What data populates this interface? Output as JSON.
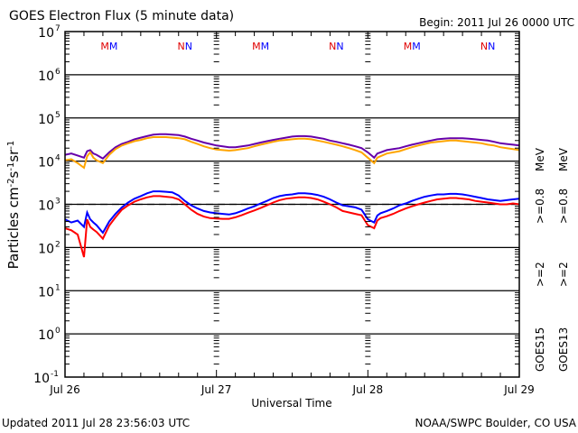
{
  "chart_data": {
    "type": "line",
    "title": "GOES Electron Flux (5 minute data)",
    "begin_label": "Begin: 2011 Jul 26 0000 UTC",
    "xlabel": "Universal Time",
    "ylabel_parts": {
      "base": "Particles cm",
      "exp1": "-2",
      "mid1": "s",
      "exp2": "-1",
      "mid2": "sr",
      "exp3": "-1"
    },
    "y_scale": "log",
    "ylim": [
      0.1,
      10000000
    ],
    "y_ticks": [
      {
        "base": "10",
        "exp": "7",
        "value": 10000000
      },
      {
        "base": "10",
        "exp": "6",
        "value": 1000000
      },
      {
        "base": "10",
        "exp": "5",
        "value": 100000
      },
      {
        "base": "10",
        "exp": "4",
        "value": 10000
      },
      {
        "base": "10",
        "exp": "3",
        "value": 1000
      },
      {
        "base": "10",
        "exp": "2",
        "value": 100
      },
      {
        "base": "10",
        "exp": "1",
        "value": 10
      },
      {
        "base": "10",
        "exp": "0",
        "value": 1
      },
      {
        "base": "10",
        "exp": "-1",
        "value": 0.1
      }
    ],
    "x_unit": "hours since 2011 Jul 26 00:00 UTC",
    "xlim": [
      0,
      72
    ],
    "x_ticks": [
      {
        "label": "Jul 26",
        "hour": 0
      },
      {
        "label": "Jul 27",
        "hour": 24
      },
      {
        "label": "Jul 28",
        "hour": 48
      },
      {
        "label": "Jul 29",
        "hour": 72
      }
    ],
    "threshold_line": {
      "value": 1000,
      "style": "dashed"
    },
    "markers": [
      {
        "label": "M",
        "hour": 7,
        "colors": [
          "#e00000",
          "#0000ff"
        ]
      },
      {
        "label": "N",
        "hour": 19,
        "colors": [
          "#e00000",
          "#0000ff"
        ]
      },
      {
        "label": "M",
        "hour": 31,
        "colors": [
          "#e00000",
          "#0000ff"
        ]
      },
      {
        "label": "N",
        "hour": 43,
        "colors": [
          "#e00000",
          "#0000ff"
        ]
      },
      {
        "label": "M",
        "hour": 55,
        "colors": [
          "#e00000",
          "#0000ff"
        ]
      },
      {
        "label": "N",
        "hour": 67,
        "colors": [
          "#e00000",
          "#0000ff"
        ]
      }
    ],
    "legend": {
      "placement": "right",
      "columns": [
        {
          "satellite": "GOES15",
          "entries": [
            {
              "label": ">=2",
              "color": "#0000ff"
            },
            {
              "label": ">=0.8",
              "color": "#6600aa"
            },
            {
              "unit": "MeV"
            }
          ]
        },
        {
          "satellite": "GOES13",
          "entries": [
            {
              "label": ">=2",
              "color": "#ff0000"
            },
            {
              "label": ">=0.8",
              "color": "#ffa500"
            },
            {
              "unit": "MeV"
            }
          ]
        }
      ],
      "unit": "MeV"
    },
    "series": [
      {
        "name": "GOES15 >=0.8 MeV",
        "color": "#6600aa",
        "x": [
          0,
          1,
          2,
          3,
          3.5,
          4,
          4.5,
          5,
          6,
          7,
          8,
          9,
          10,
          11,
          12,
          13,
          14,
          15,
          16,
          17,
          18,
          19,
          20,
          21,
          22,
          23,
          24,
          25,
          26,
          27,
          28,
          29,
          30,
          31,
          32,
          33,
          34,
          35,
          36,
          37,
          38,
          39,
          40,
          41,
          42,
          43,
          44,
          45,
          46,
          47,
          48,
          49,
          49.5,
          50,
          51,
          52,
          53,
          54,
          55,
          56,
          57,
          58,
          59,
          60,
          61,
          62,
          63,
          64,
          65,
          66,
          67,
          68,
          69,
          70,
          71,
          72
        ],
        "y": [
          14000,
          15000,
          13500,
          12000,
          17000,
          18000,
          15000,
          14000,
          11500,
          16000,
          21000,
          25000,
          28000,
          32000,
          35000,
          38000,
          41000,
          42000,
          42000,
          41000,
          40000,
          37000,
          33000,
          30000,
          27000,
          25000,
          23000,
          22000,
          21000,
          21000,
          22000,
          23000,
          25000,
          27000,
          29000,
          31000,
          33000,
          35000,
          37000,
          38000,
          38000,
          37000,
          35000,
          33000,
          30000,
          28000,
          26000,
          24000,
          22000,
          20000,
          16000,
          12000,
          15000,
          16000,
          18000,
          19000,
          20000,
          22000,
          24000,
          26000,
          28000,
          30000,
          32000,
          33000,
          34000,
          34000,
          34000,
          33000,
          32000,
          31000,
          30000,
          28000,
          26000,
          25000,
          24000,
          23000
        ]
      },
      {
        "name": "GOES13 >=0.8 MeV",
        "color": "#ffa500",
        "x": [
          0,
          1,
          2,
          3,
          3.5,
          4,
          4.5,
          5,
          6,
          7,
          8,
          9,
          10,
          11,
          12,
          13,
          14,
          15,
          16,
          17,
          18,
          19,
          20,
          21,
          22,
          23,
          24,
          25,
          26,
          27,
          28,
          29,
          30,
          31,
          32,
          33,
          34,
          35,
          36,
          37,
          38,
          39,
          40,
          41,
          42,
          43,
          44,
          45,
          46,
          47,
          48,
          49,
          49.5,
          50,
          51,
          52,
          53,
          54,
          55,
          56,
          57,
          58,
          59,
          60,
          61,
          62,
          63,
          64,
          65,
          66,
          67,
          68,
          69,
          70,
          71,
          72
        ],
        "y": [
          10500,
          11000,
          9000,
          7000,
          13000,
          16000,
          12000,
          10500,
          9000,
          14000,
          19000,
          23000,
          26000,
          29000,
          31000,
          34000,
          36000,
          36000,
          36000,
          35000,
          34000,
          32000,
          28000,
          25000,
          22000,
          20000,
          18500,
          18000,
          17500,
          18000,
          19000,
          20000,
          22000,
          24000,
          26000,
          28000,
          30000,
          31000,
          32000,
          33000,
          33000,
          32000,
          30000,
          28000,
          26000,
          24000,
          22000,
          20000,
          18000,
          16000,
          12000,
          9000,
          12000,
          13000,
          15000,
          16000,
          17000,
          19000,
          21000,
          23000,
          25000,
          27000,
          28000,
          29000,
          30000,
          30000,
          29000,
          28000,
          27000,
          26000,
          24000,
          23000,
          21000,
          20000,
          19000,
          18000
        ]
      },
      {
        "name": "GOES15 >=2 MeV",
        "color": "#0000ff",
        "x": [
          0,
          1,
          2,
          3,
          3.5,
          4,
          4.5,
          5,
          6,
          7,
          8,
          9,
          10,
          11,
          12,
          13,
          14,
          15,
          16,
          17,
          18,
          19,
          20,
          21,
          22,
          23,
          24,
          25,
          26,
          27,
          28,
          29,
          30,
          31,
          32,
          33,
          34,
          35,
          36,
          37,
          38,
          39,
          40,
          41,
          42,
          43,
          44,
          45,
          46,
          47,
          48,
          49,
          49.5,
          50,
          51,
          52,
          53,
          54,
          55,
          56,
          57,
          58,
          59,
          60,
          61,
          62,
          63,
          64,
          65,
          66,
          67,
          68,
          69,
          70,
          71,
          72
        ],
        "y": [
          450,
          380,
          420,
          300,
          650,
          450,
          380,
          330,
          220,
          400,
          600,
          850,
          1100,
          1350,
          1550,
          1800,
          2000,
          2000,
          1950,
          1900,
          1600,
          1200,
          950,
          800,
          700,
          650,
          620,
          600,
          580,
          620,
          700,
          800,
          900,
          1050,
          1200,
          1400,
          1550,
          1650,
          1700,
          1800,
          1800,
          1750,
          1650,
          1500,
          1300,
          1100,
          950,
          900,
          850,
          750,
          450,
          380,
          550,
          620,
          700,
          800,
          950,
          1050,
          1200,
          1350,
          1500,
          1600,
          1700,
          1700,
          1750,
          1750,
          1700,
          1600,
          1500,
          1400,
          1300,
          1250,
          1200,
          1250,
          1300,
          1350
        ]
      },
      {
        "name": "GOES13 >=2 MeV",
        "color": "#ff0000",
        "x": [
          0,
          1,
          2,
          3,
          3.5,
          4,
          4.5,
          5,
          6,
          7,
          8,
          9,
          10,
          11,
          12,
          13,
          14,
          15,
          16,
          17,
          18,
          19,
          20,
          21,
          22,
          23,
          24,
          25,
          26,
          27,
          28,
          29,
          30,
          31,
          32,
          33,
          34,
          35,
          36,
          37,
          38,
          39,
          40,
          41,
          42,
          43,
          44,
          45,
          46,
          47,
          48,
          49,
          49.5,
          50,
          51,
          52,
          53,
          54,
          55,
          56,
          57,
          58,
          59,
          60,
          61,
          62,
          63,
          64,
          65,
          66,
          67,
          68,
          69,
          70,
          71,
          72
        ],
        "y": [
          280,
          250,
          200,
          60,
          450,
          300,
          260,
          230,
          160,
          320,
          500,
          750,
          950,
          1150,
          1300,
          1450,
          1550,
          1550,
          1500,
          1450,
          1300,
          1000,
          750,
          600,
          520,
          480,
          470,
          460,
          460,
          500,
          560,
          640,
          720,
          820,
          950,
          1100,
          1250,
          1350,
          1400,
          1450,
          1450,
          1400,
          1300,
          1150,
          1000,
          850,
          700,
          650,
          600,
          560,
          330,
          280,
          420,
          480,
          530,
          600,
          700,
          800,
          900,
          1000,
          1100,
          1200,
          1300,
          1350,
          1400,
          1400,
          1350,
          1300,
          1200,
          1150,
          1100,
          1050,
          1000,
          1000,
          1050,
          1000
        ]
      }
    ]
  },
  "footer": {
    "updated": "Updated 2011 Jul 28 23:56:03 UTC",
    "credit": "NOAA/SWPC Boulder, CO USA"
  }
}
